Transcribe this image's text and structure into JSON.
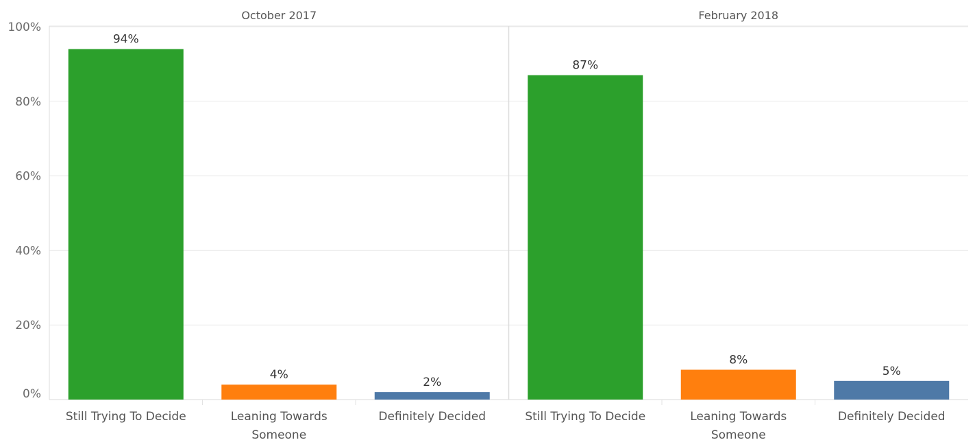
{
  "chart_data": {
    "type": "bar",
    "ylim": [
      0,
      100
    ],
    "yticks": [
      0,
      20,
      40,
      60,
      80,
      100
    ],
    "ytick_labels": [
      "0%",
      "20%",
      "40%",
      "60%",
      "80%",
      "100%"
    ],
    "grid": true,
    "categories": [
      [
        "Still Trying To Decide"
      ],
      [
        "Leaning Towards",
        "Someone"
      ],
      [
        "Definitely Decided"
      ]
    ],
    "colors": [
      "#2ca02c",
      "#ff7f0e",
      "#4e79a7"
    ],
    "panels": [
      {
        "title": "October 2017",
        "values": [
          94,
          4,
          2
        ],
        "labels": [
          "94%",
          "4%",
          "2%"
        ]
      },
      {
        "title": "February 2018",
        "values": [
          87,
          8,
          5
        ],
        "labels": [
          "87%",
          "8%",
          "5%"
        ]
      }
    ]
  }
}
